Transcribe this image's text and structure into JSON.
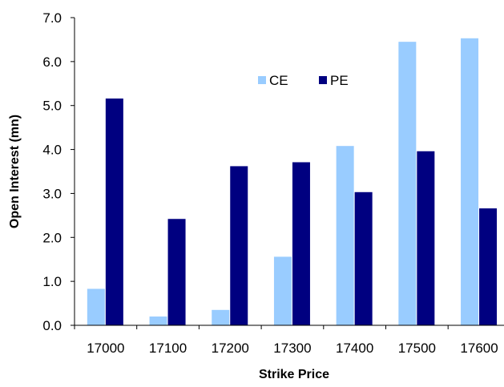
{
  "chart_data": {
    "type": "bar",
    "title": "",
    "xlabel": "Strike Price",
    "ylabel": "Open Interest (mn)",
    "categories": [
      "17000",
      "17100",
      "17200",
      "17300",
      "17400",
      "17500",
      "17600"
    ],
    "series": [
      {
        "name": "CE",
        "color": "#99CCFF",
        "values": [
          0.83,
          0.2,
          0.35,
          1.56,
          4.08,
          6.45,
          6.53
        ]
      },
      {
        "name": "PE",
        "color": "#000080",
        "values": [
          5.16,
          2.42,
          3.62,
          3.71,
          3.03,
          3.96,
          2.66
        ]
      }
    ],
    "ylim": [
      0,
      7
    ],
    "yticks": [
      "0.0",
      "1.0",
      "2.0",
      "3.0",
      "4.0",
      "5.0",
      "6.0",
      "7.0"
    ],
    "grid": false,
    "legend": "top-center"
  }
}
